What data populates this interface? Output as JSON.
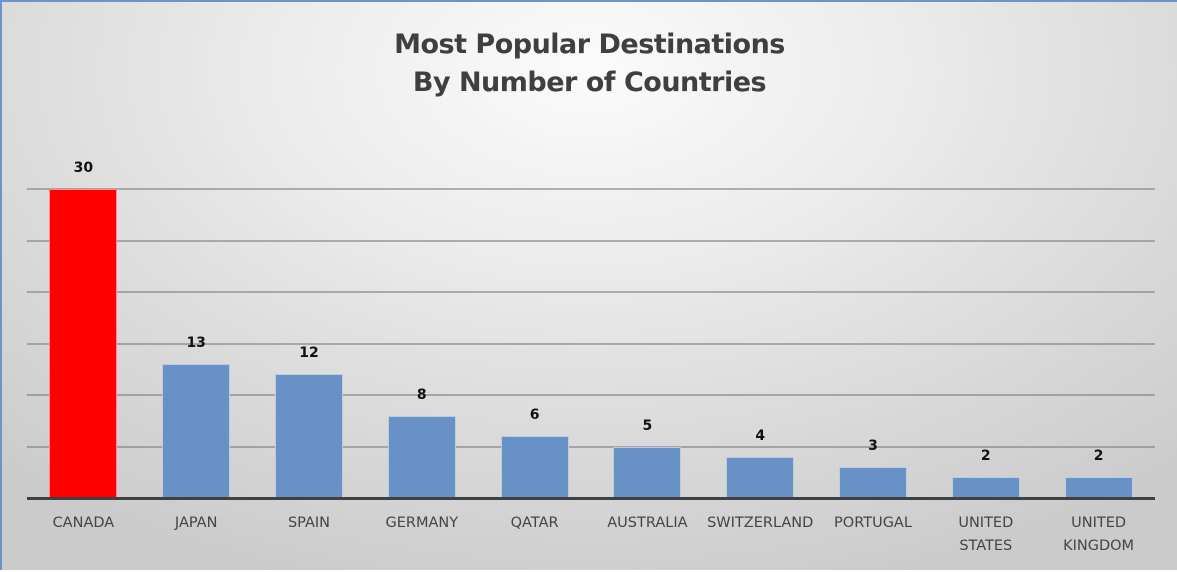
{
  "chart": {
    "title_line1": "Most Popular Destinations",
    "title_line2": "By Number of Countries"
  },
  "colors": {
    "highlight": "#ff0000",
    "bar": "#6590c5",
    "border": "#6d93c8"
  },
  "chart_data": {
    "type": "bar",
    "title": "Most Popular Destinations By Number of Countries",
    "xlabel": "",
    "ylabel": "",
    "categories": [
      "CANADA",
      "JAPAN",
      "SPAIN",
      "GERMANY",
      "QATAR",
      "AUSTRALIA",
      "SWITZERLAND",
      "PORTUGAL",
      "UNITED STATES",
      "UNITED KINGDOM"
    ],
    "category_lines": [
      [
        "CANADA"
      ],
      [
        "JAPAN"
      ],
      [
        "SPAIN"
      ],
      [
        "GERMANY"
      ],
      [
        "QATAR"
      ],
      [
        "AUSTRALIA"
      ],
      [
        "SWITZERLAND"
      ],
      [
        "PORTUGAL"
      ],
      [
        "UNITED",
        "STATES"
      ],
      [
        "UNITED",
        "KINGDOM"
      ]
    ],
    "values": [
      30,
      13,
      12,
      8,
      6,
      5,
      4,
      3,
      2,
      2
    ],
    "highlight_index": 0,
    "ylim": [
      0,
      30
    ],
    "gridline_step": 5,
    "grid": true,
    "y_tick_labels_shown": false,
    "data_labels": true,
    "legend": "none"
  }
}
